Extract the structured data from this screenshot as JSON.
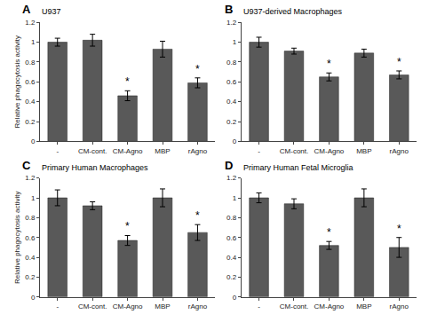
{
  "chart_data": [
    {
      "type": "bar",
      "title": "U937",
      "categories": [
        "-",
        "CM-cont.",
        "CM-Agno",
        "MBP",
        "rAgno"
      ],
      "values": [
        1.0,
        1.02,
        0.46,
        0.93,
        0.59
      ],
      "errors": [
        0.04,
        0.06,
        0.05,
        0.08,
        0.05
      ],
      "color": "#595959",
      "ylabel": "Relative phagocytosis activity",
      "ylim": [
        0,
        1.2
      ],
      "yticks": [
        0,
        0.2,
        0.4,
        0.6,
        0.8,
        1,
        1.2
      ],
      "grid": false,
      "annotations": [
        {
          "text": "A"
        },
        {
          "text": "*",
          "category": "CM-Agno"
        },
        {
          "text": "*",
          "category": "rAgno"
        }
      ]
    },
    {
      "type": "bar",
      "title": "U937-derived Macrophages",
      "categories": [
        "-",
        "CM-cont.",
        "CM-Agno",
        "MBP",
        "rAgno"
      ],
      "values": [
        1.0,
        0.91,
        0.65,
        0.89,
        0.67
      ],
      "errors": [
        0.05,
        0.03,
        0.04,
        0.04,
        0.04
      ],
      "color": "#595959",
      "ylim": [
        0,
        1.2
      ],
      "yticks": [
        0,
        0.2,
        0.4,
        0.6,
        0.8,
        1,
        1.2
      ],
      "grid": false,
      "annotations": [
        {
          "text": "B"
        },
        {
          "text": "*",
          "category": "CM-Agno"
        },
        {
          "text": "*",
          "category": "rAgno"
        }
      ]
    },
    {
      "type": "bar",
      "title": "Primary Human Macrophages",
      "categories": [
        "-",
        "CM-cont.",
        "CM-Agno",
        "MBP",
        "rAgno"
      ],
      "values": [
        1.0,
        0.92,
        0.57,
        1.0,
        0.65
      ],
      "errors": [
        0.08,
        0.04,
        0.05,
        0.09,
        0.08
      ],
      "color": "#595959",
      "ylabel": "Relative phagocytosis activity",
      "ylim": [
        0,
        1.2
      ],
      "yticks": [
        0,
        0.2,
        0.4,
        0.6,
        0.8,
        1,
        1.2
      ],
      "grid": false,
      "annotations": [
        {
          "text": "C"
        },
        {
          "text": "*",
          "category": "CM-Agno"
        },
        {
          "text": "*",
          "category": "rAgno"
        }
      ]
    },
    {
      "type": "bar",
      "title": "Primary Human Fetal Microglia",
      "categories": [
        "-",
        "CM-cont.",
        "CM-Agno",
        "MBP",
        "rAgno"
      ],
      "values": [
        1.0,
        0.94,
        0.52,
        1.0,
        0.5
      ],
      "errors": [
        0.05,
        0.05,
        0.04,
        0.09,
        0.1
      ],
      "color": "#595959",
      "ylim": [
        0,
        1.2
      ],
      "yticks": [
        0,
        0.2,
        0.4,
        0.6,
        0.8,
        1,
        1.2
      ],
      "grid": false,
      "annotations": [
        {
          "text": "D"
        },
        {
          "text": "*",
          "category": "CM-Agno"
        },
        {
          "text": "*",
          "category": "rAgno"
        }
      ]
    }
  ]
}
